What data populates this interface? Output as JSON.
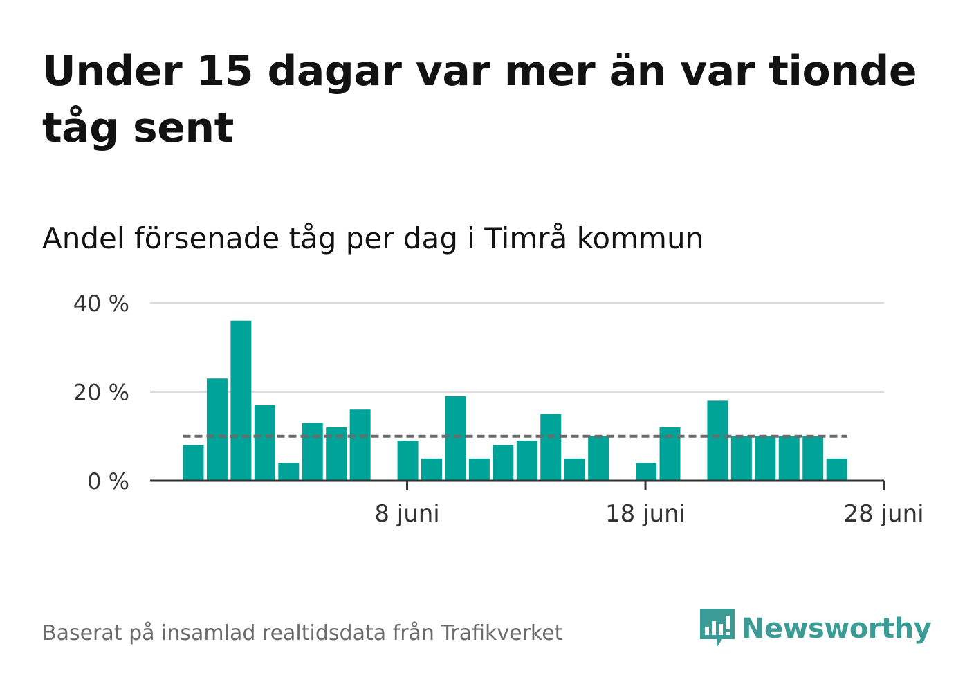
{
  "title": "Under 15 dagar var mer än var tionde tåg sent",
  "subtitle": "Andel försenade tåg per dag i Timrå kommun",
  "caption": "Baserat på insamlad realtidsdata från Trafikverket",
  "brand": {
    "name": "Newsworthy",
    "color": "#3a9c94"
  },
  "chart_data": {
    "type": "bar",
    "x": [
      "2019-05-30",
      "2019-05-31",
      "2019-06-01",
      "2019-06-02",
      "2019-06-03",
      "2019-06-04",
      "2019-06-05",
      "2019-06-06",
      "2019-06-07",
      "2019-06-08",
      "2019-06-09",
      "2019-06-10",
      "2019-06-11",
      "2019-06-12",
      "2019-06-13",
      "2019-06-14",
      "2019-06-15",
      "2019-06-16",
      "2019-06-17",
      "2019-06-18",
      "2019-06-19",
      "2019-06-20",
      "2019-06-21",
      "2019-06-22",
      "2019-06-23",
      "2019-06-24",
      "2019-06-25",
      "2019-06-26",
      "2019-06-27",
      "2019-06-28"
    ],
    "values": [
      8,
      23,
      36,
      17,
      4,
      13,
      12,
      16,
      0,
      9,
      5,
      19,
      5,
      8,
      9,
      15,
      5,
      10,
      0,
      4,
      12,
      0,
      18,
      10,
      10,
      10,
      10,
      5,
      null,
      null
    ],
    "reference_line": 10,
    "yticks": [
      0,
      20,
      40
    ],
    "ytick_labels": [
      "0 %",
      "20 %",
      "40 %"
    ],
    "xtick_labels": [
      "8 juni",
      "18 juni",
      "28 juni"
    ],
    "ylim": [
      0,
      40
    ],
    "grid": true,
    "bar_color": "#00a398",
    "reference_color": "#6b6b6b"
  }
}
